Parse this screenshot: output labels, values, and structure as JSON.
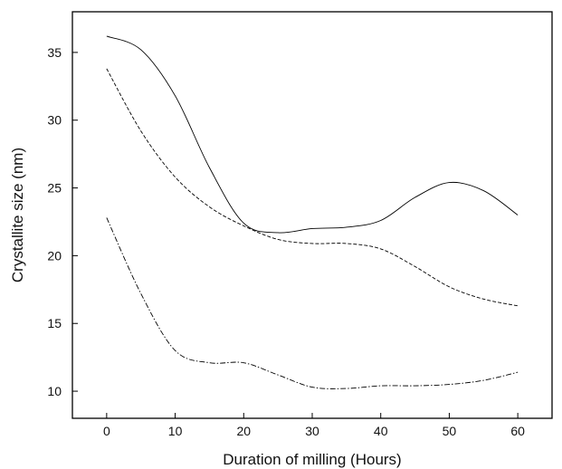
{
  "chart_data": {
    "type": "line",
    "xlabel": "Duration of milling (Hours)",
    "ylabel": "Crystallite size (nm)",
    "xlim": [
      -5,
      65
    ],
    "ylim": [
      8,
      38
    ],
    "xticks": [
      0,
      10,
      20,
      30,
      40,
      50,
      60
    ],
    "yticks": [
      10,
      15,
      20,
      25,
      30,
      35
    ],
    "grid": false,
    "series": [
      {
        "style": "solid",
        "x": [
          0,
          5,
          10,
          15,
          20,
          25,
          30,
          35,
          40,
          45,
          50,
          55,
          60
        ],
        "y": [
          36.2,
          35.2,
          31.8,
          26.5,
          22.4,
          21.7,
          22.0,
          22.1,
          22.6,
          24.3,
          25.4,
          24.8,
          23.0
        ]
      },
      {
        "style": "dashed",
        "x": [
          0,
          5,
          10,
          15,
          20,
          25,
          30,
          35,
          40,
          45,
          50,
          55,
          60
        ],
        "y": [
          33.8,
          29.2,
          25.8,
          23.6,
          22.2,
          21.2,
          20.9,
          20.9,
          20.5,
          19.2,
          17.7,
          16.8,
          16.3
        ]
      },
      {
        "style": "dashdot",
        "x": [
          0,
          5,
          10,
          15,
          20,
          25,
          30,
          35,
          40,
          45,
          50,
          55,
          60
        ],
        "y": [
          22.8,
          17.2,
          13.0,
          12.1,
          12.1,
          11.2,
          10.3,
          10.2,
          10.4,
          10.4,
          10.5,
          10.8,
          11.4
        ]
      }
    ]
  }
}
